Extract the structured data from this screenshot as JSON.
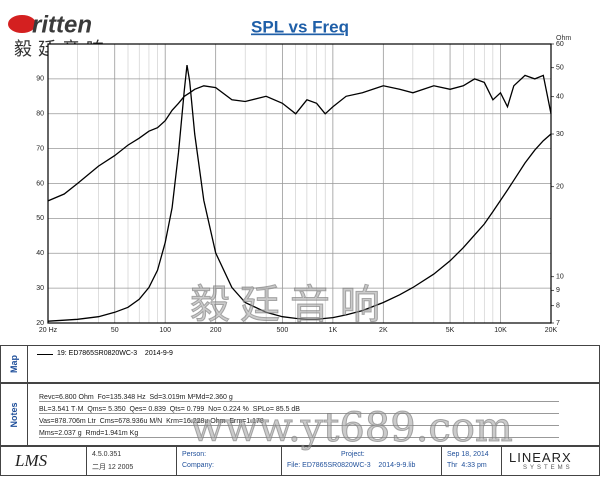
{
  "logo": {
    "brand": "ritten",
    "chinese": "毅廷音响"
  },
  "chart_data": {
    "type": "line",
    "title": "SPL vs Freq",
    "y2label": "Ohm",
    "xscale": "log",
    "y2scale": "log",
    "grid": true,
    "xlim": [
      20,
      20000
    ],
    "xticks": [
      {
        "value": 20,
        "label": "20 Hz"
      },
      50,
      100,
      200,
      500,
      {
        "value": 1000,
        "label": "1K"
      },
      {
        "value": 2000,
        "label": "2K"
      },
      {
        "value": 5000,
        "label": "5K"
      },
      {
        "value": 10000,
        "label": "10K"
      },
      {
        "value": 20000,
        "label": "20K"
      }
    ],
    "ylim": [
      20,
      100
    ],
    "yticks": [
      20,
      30,
      40,
      50,
      60,
      70,
      80,
      90
    ],
    "y2lim": [
      7,
      60
    ],
    "y2ticks": [
      7,
      8,
      9,
      10,
      20,
      30,
      40,
      50,
      60
    ],
    "x": [
      20,
      25,
      30,
      40,
      50,
      60,
      70,
      80,
      90,
      100,
      110,
      120,
      130,
      135,
      140,
      150,
      170,
      200,
      250,
      300,
      400,
      500,
      600,
      700,
      800,
      900,
      1000,
      1200,
      1500,
      2000,
      2500,
      3000,
      4000,
      5000,
      6000,
      7000,
      8000,
      9000,
      10000,
      11000,
      12000,
      14000,
      16000,
      18000,
      20000
    ],
    "series": [
      {
        "color": "#000000",
        "values": [
          55,
          57,
          60,
          65,
          68,
          71,
          73,
          75,
          76,
          78,
          81,
          83,
          85,
          85.5,
          86,
          87,
          88,
          87.5,
          84,
          83.5,
          85,
          83,
          80,
          84,
          83,
          80,
          82,
          85,
          86,
          88,
          87,
          86,
          88,
          87,
          88,
          90,
          89,
          84,
          86,
          82,
          88,
          91,
          90,
          91,
          80
        ]
      },
      {
        "color": "#000000",
        "axis": "y2",
        "values": [
          7.1,
          7.15,
          7.2,
          7.35,
          7.6,
          7.9,
          8.4,
          9.2,
          10.5,
          13,
          17,
          26,
          42,
          51,
          45,
          30,
          18,
          12,
          9.2,
          8.2,
          7.6,
          7.35,
          7.25,
          7.2,
          7.2,
          7.25,
          7.3,
          7.45,
          7.7,
          8.2,
          8.7,
          9.2,
          10.2,
          11.3,
          12.5,
          13.8,
          15,
          16.5,
          18,
          19.5,
          21,
          24,
          26.5,
          28.5,
          30
        ]
      }
    ]
  },
  "map": {
    "label": "Map",
    "entry": "19: ED7865SR0820WC-3    2014-9-9"
  },
  "notes": {
    "label": "Notes",
    "lines": [
      "Revc=6.800 Ohm  Fo=135.348 Hz  Sd=3.019m M²Md=2.360 g",
      "BL=3.541 T·M  Qms= 5.350  Qes= 0.839  Qts= 0.799  No= 0.224 %  SPLo= 85.5 dB",
      "Vas=878.706m Ltr  Cms=678.936u M/N  Krm=16.228u Ohm  Erm=1.178",
      "Mms=2.037 g  Rmd=1.941m Kg"
    ]
  },
  "footer": {
    "lms": "LMS",
    "version": "4.5.0.351",
    "build": "二月 12 2005",
    "person": "Person:",
    "company": "Company:",
    "project": "Project:",
    "file": "File: ED7865SR0820WC-3    2014-9-9.lib",
    "date": "Sep 18, 2014",
    "time": "Thr  4:33 pm",
    "vendor": "LINEARX",
    "vendor_sub": "SYSTEMS"
  },
  "watermark": {
    "chinese": "毅廷音响",
    "url": "www.yt689.com"
  }
}
